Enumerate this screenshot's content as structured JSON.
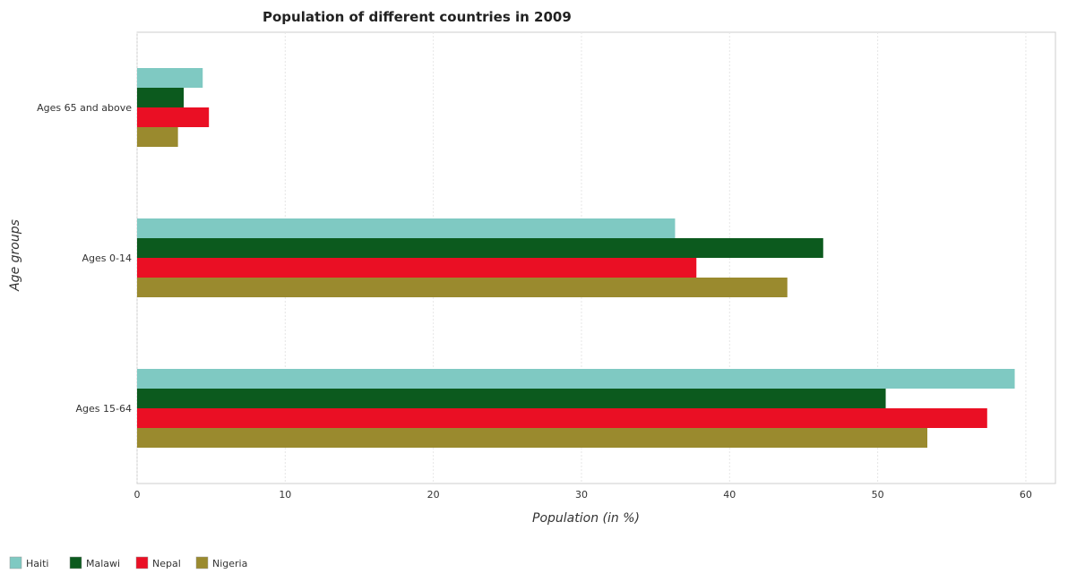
{
  "chart_data": {
    "type": "bar",
    "orientation": "horizontal",
    "title": "Population of different countries in 2009",
    "xlabel": "Population (in %)",
    "ylabel": "Age groups",
    "categories": [
      "Ages 65 and above",
      "Ages 0-14",
      "Ages 15-64"
    ],
    "xlim": [
      0,
      62
    ],
    "xticks": [
      0,
      10,
      20,
      30,
      40,
      50,
      60
    ],
    "grid": true,
    "legend_position": "bottom-left",
    "series": [
      {
        "name": "Haiti",
        "color": "#7fc9c2",
        "values": [
          4.43,
          36.32,
          59.25
        ]
      },
      {
        "name": "Malawi",
        "color": "#0c5a1e",
        "values": [
          3.15,
          46.32,
          50.54
        ]
      },
      {
        "name": "Nepal",
        "color": "#ea0f24",
        "values": [
          4.85,
          37.76,
          57.39
        ]
      },
      {
        "name": "Nigeria",
        "color": "#9a8a2e",
        "values": [
          2.76,
          43.9,
          53.35
        ]
      }
    ]
  }
}
